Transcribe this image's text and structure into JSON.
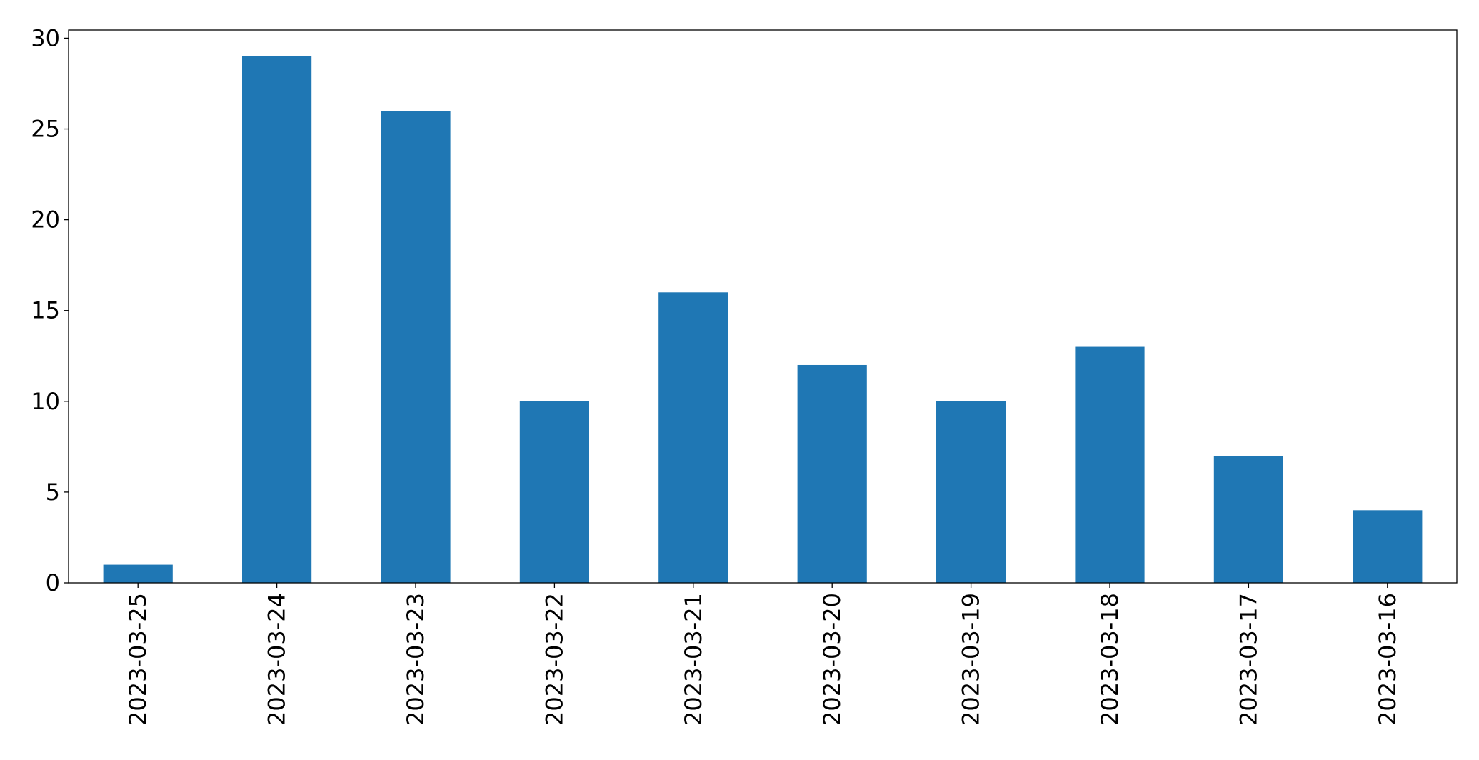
{
  "chart_data": {
    "type": "bar",
    "categories": [
      "2023-03-25",
      "2023-03-24",
      "2023-03-23",
      "2023-03-22",
      "2023-03-21",
      "2023-03-20",
      "2023-03-19",
      "2023-03-18",
      "2023-03-17",
      "2023-03-16"
    ],
    "values": [
      1,
      29,
      26,
      10,
      16,
      12,
      10,
      13,
      7,
      4
    ],
    "color": "#1f77b4",
    "ylim": [
      0,
      30.45
    ],
    "yticks": [
      0,
      5,
      10,
      15,
      20,
      25,
      30
    ],
    "grid": false
  }
}
